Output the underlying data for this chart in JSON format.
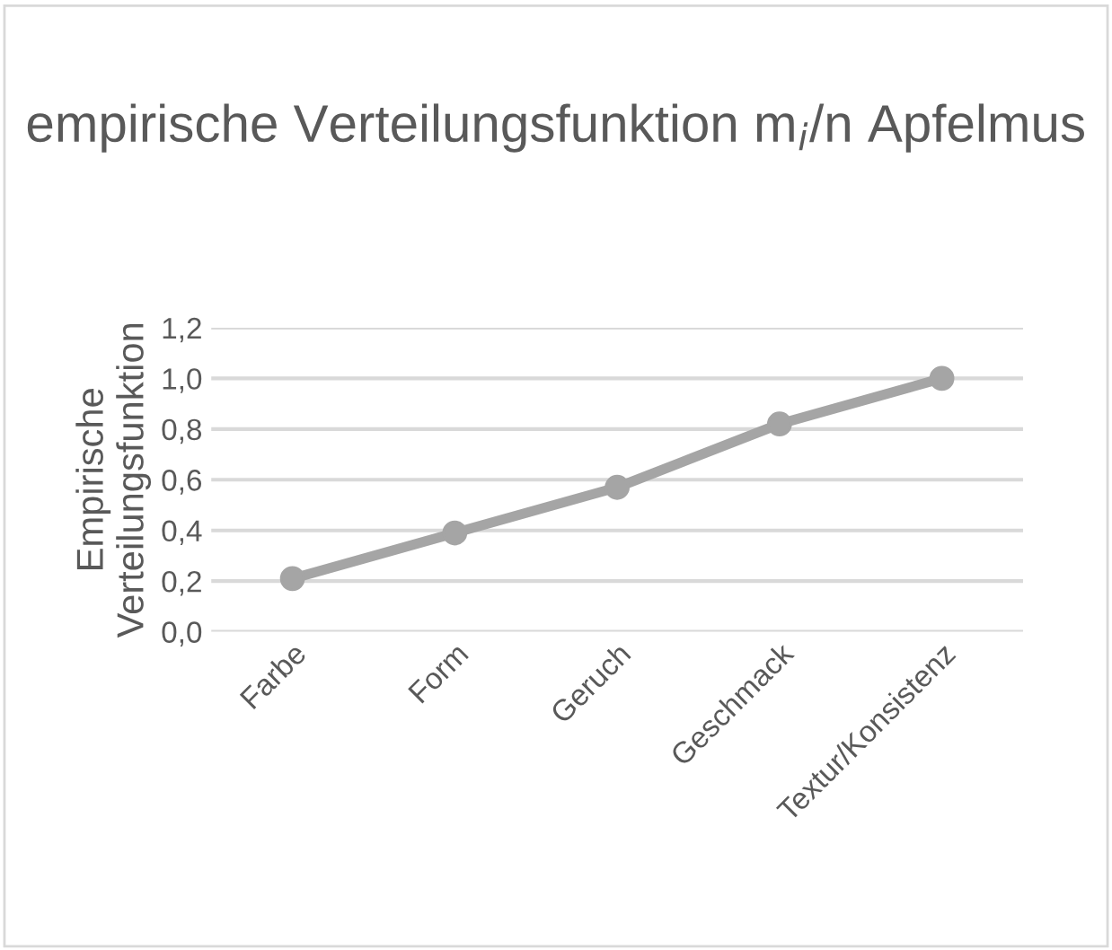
{
  "chart_data": {
    "type": "line",
    "title": "empirische Verteilungsfunktion m$_{i}$/n Apfelmus",
    "ylabel": "Empirische Verteilungsfunktion",
    "categories": [
      "Farbe",
      "Form",
      "Geruch",
      "Geschmack",
      "Textur/Konsistenz"
    ],
    "series": [
      {
        "color": "#a5a5a5",
        "values": [
          0.21,
          0.39,
          0.57,
          0.82,
          1.0
        ]
      }
    ],
    "ylim": [
      0,
      1.2
    ],
    "yticks": [
      {
        "value": 0,
        "label": "0,0"
      },
      {
        "value": 0.2,
        "label": "0,2"
      },
      {
        "value": 0.4,
        "label": "0,4"
      },
      {
        "value": 0.6,
        "label": "0,6"
      },
      {
        "value": 0.8,
        "label": "0,8"
      },
      {
        "value": 1.0,
        "label": "1,0"
      },
      {
        "value": 1.2,
        "label": "1,2"
      }
    ],
    "grid": "y",
    "marker": "circle",
    "line_style": "solid",
    "legend": false
  }
}
